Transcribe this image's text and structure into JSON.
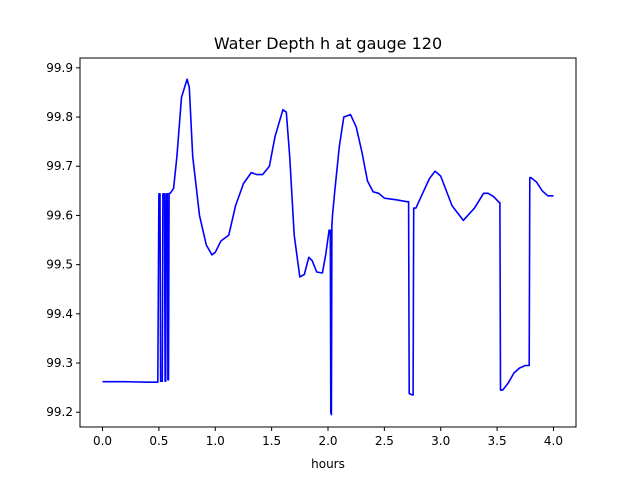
{
  "chart_data": {
    "type": "line",
    "title": "Water Depth h at gauge 120",
    "xlabel": "hours",
    "ylabel": "",
    "xlim": [
      -0.2,
      4.2
    ],
    "ylim": [
      99.17,
      99.92
    ],
    "xticks": [
      0.0,
      0.5,
      1.0,
      1.5,
      2.0,
      2.5,
      3.0,
      3.5,
      4.0
    ],
    "xtick_labels": [
      "0.0",
      "0.5",
      "1.0",
      "1.5",
      "2.0",
      "2.5",
      "3.0",
      "3.5",
      "4.0"
    ],
    "yticks": [
      99.2,
      99.3,
      99.4,
      99.5,
      99.6,
      99.7,
      99.8,
      99.9
    ],
    "ytick_labels": [
      "99.2",
      "99.3",
      "99.4",
      "99.5",
      "99.6",
      "99.7",
      "99.8",
      "99.9"
    ],
    "grid": false,
    "series": [
      {
        "color": "#0000ff",
        "x": [
          0.0,
          0.2,
          0.4,
          0.49,
          0.5,
          0.51,
          0.515,
          0.52,
          0.53,
          0.535,
          0.55,
          0.555,
          0.56,
          0.565,
          0.575,
          0.58,
          0.585,
          0.59,
          0.6,
          0.63,
          0.66,
          0.7,
          0.75,
          0.77,
          0.8,
          0.86,
          0.92,
          0.97,
          1.0,
          1.05,
          1.12,
          1.18,
          1.25,
          1.32,
          1.37,
          1.42,
          1.48,
          1.53,
          1.6,
          1.63,
          1.66,
          1.7,
          1.75,
          1.79,
          1.83,
          1.86,
          1.9,
          1.95,
          1.98,
          2.01,
          2.02,
          2.025,
          2.03,
          2.035,
          2.04,
          2.06,
          2.1,
          2.14,
          2.2,
          2.25,
          2.3,
          2.35,
          2.4,
          2.45,
          2.5,
          2.6,
          2.7,
          2.715,
          2.72,
          2.75,
          2.755,
          2.76,
          2.78,
          2.85,
          2.9,
          2.95,
          3.0,
          3.1,
          3.2,
          3.3,
          3.38,
          3.42,
          3.47,
          3.52,
          3.525,
          3.53,
          3.55,
          3.6,
          3.65,
          3.7,
          3.75,
          3.785,
          3.79,
          3.8,
          3.85,
          3.9,
          3.95,
          4.0
        ],
        "y": [
          99.262,
          99.262,
          99.261,
          99.261,
          99.644,
          99.644,
          99.263,
          99.263,
          99.263,
          99.644,
          99.644,
          99.263,
          99.263,
          99.644,
          99.644,
          99.266,
          99.266,
          99.645,
          99.645,
          99.655,
          99.72,
          99.84,
          99.877,
          99.86,
          99.72,
          99.6,
          99.54,
          99.52,
          99.525,
          99.548,
          99.56,
          99.62,
          99.665,
          99.687,
          99.683,
          99.683,
          99.7,
          99.76,
          99.815,
          99.81,
          99.72,
          99.56,
          99.475,
          99.48,
          99.515,
          99.508,
          99.485,
          99.483,
          99.52,
          99.57,
          99.57,
          99.2,
          99.195,
          99.58,
          99.6,
          99.65,
          99.74,
          99.8,
          99.805,
          99.78,
          99.73,
          99.67,
          99.648,
          99.645,
          99.635,
          99.632,
          99.628,
          99.628,
          99.238,
          99.235,
          99.235,
          99.615,
          99.615,
          99.65,
          99.675,
          99.69,
          99.68,
          99.62,
          99.59,
          99.615,
          99.645,
          99.645,
          99.638,
          99.626,
          99.626,
          99.245,
          99.245,
          99.26,
          99.28,
          99.29,
          99.295,
          99.295,
          99.677,
          99.677,
          99.668,
          99.65,
          99.64,
          99.64
        ]
      }
    ]
  }
}
